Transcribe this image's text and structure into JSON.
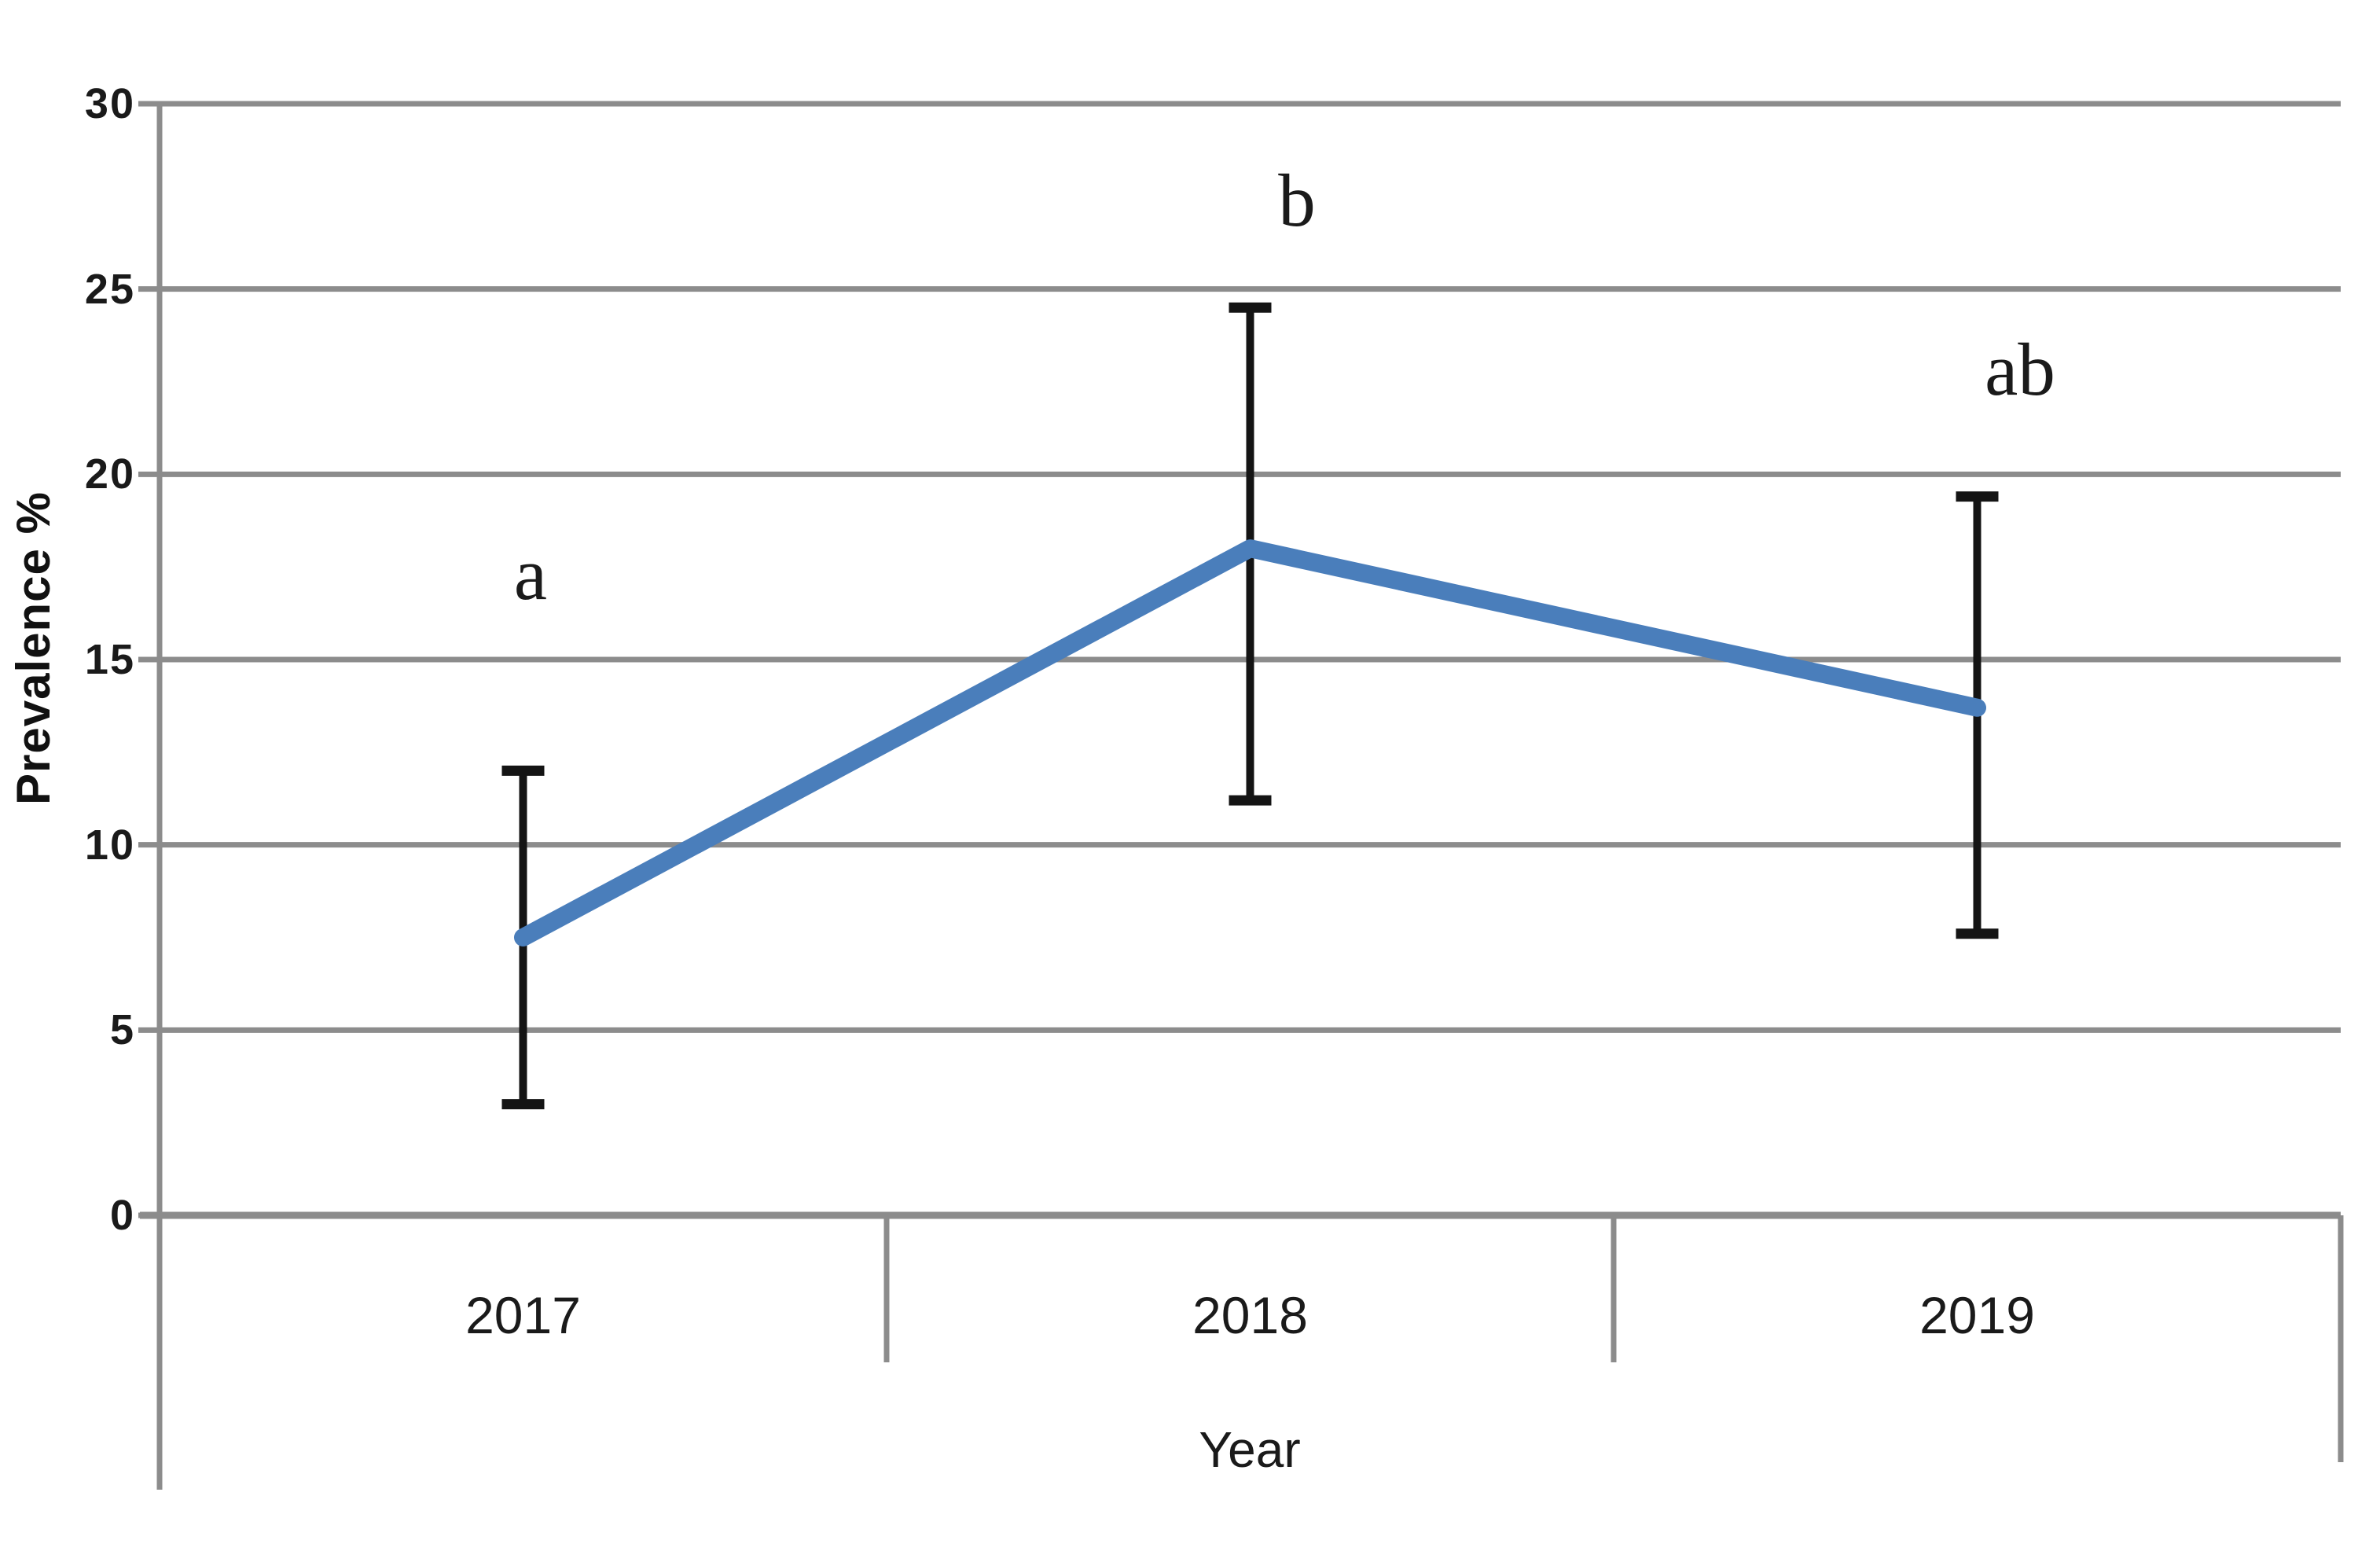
{
  "chart_data": {
    "type": "line",
    "title": "",
    "xlabel": "Year",
    "ylabel": "Prevalence %",
    "categories": [
      "2017",
      "2018",
      "2019"
    ],
    "series": [
      {
        "name": "Prevalence",
        "values": [
          7.5,
          18.0,
          13.7
        ],
        "error_bars": {
          "lower": [
            3.0,
            11.2,
            7.6
          ],
          "upper": [
            12.0,
            24.5,
            19.4
          ]
        },
        "color": "#4A7EBB"
      }
    ],
    "significance_labels": [
      {
        "category": "2017",
        "label": "a"
      },
      {
        "category": "2018",
        "label": "b"
      },
      {
        "category": "2019",
        "label": "ab"
      }
    ],
    "ylim": [
      0,
      30
    ],
    "yticks": [
      0,
      5,
      10,
      15,
      20,
      25,
      30
    ],
    "grid": "horizontal",
    "legend": "none",
    "colors": {
      "gridline": "#8C8C8C",
      "axis": "#8C8C8C",
      "error_bar": "#141414",
      "text": "#1A1A1A"
    }
  }
}
